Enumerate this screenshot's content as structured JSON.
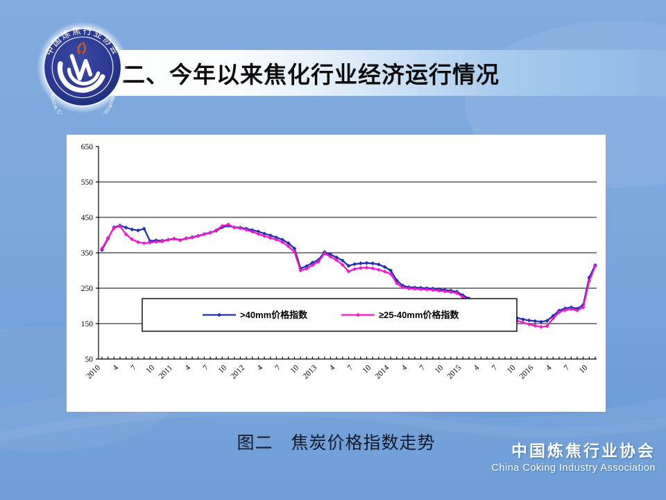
{
  "slide": {
    "title": "二、今年以来焦化行业经济运行情况",
    "caption": "图二　焦炭价格指数走势"
  },
  "logo": {
    "ring_text_top": "中国炼焦行业协会",
    "ring_text_bottom": "China Coking Industry Association",
    "circle_color": "#2a3890",
    "flame_color": "#c8581e"
  },
  "footer": {
    "org_zh": "中国炼焦行业协会",
    "org_en": "China Coking Industry Association"
  },
  "chart_data": {
    "type": "line",
    "title": "图二　焦炭价格指数走势",
    "xlabel": "",
    "ylabel": "",
    "ylim": [
      50,
      650
    ],
    "y_ticks": [
      650,
      550,
      450,
      350,
      250,
      150,
      50
    ],
    "grid_values": [
      550,
      450,
      350,
      250,
      150
    ],
    "grid": "horizontal-only",
    "legend_position": "boxed-inside-lower-left",
    "x_tick_step": 3,
    "x_tick_labels": [
      "2010",
      "4",
      "7",
      "10",
      "2011",
      "4",
      "7",
      "10",
      "2012",
      "4",
      "7",
      "10",
      "2013",
      "4",
      "7",
      "10",
      "2014",
      "4",
      "7",
      "10",
      "2015",
      "4",
      "7",
      "10",
      "2016",
      "4",
      "7",
      "10"
    ],
    "x_period_note": "monthly points, Jan 2010 - Nov 2016",
    "series": [
      {
        "name": ">40mm价格指数",
        "color": "#1f2fae",
        "values": [
          358,
          390,
          422,
          427,
          421,
          416,
          413,
          418,
          383,
          385,
          384,
          387,
          390,
          386,
          391,
          394,
          398,
          403,
          407,
          412,
          422,
          426,
          422,
          421,
          418,
          414,
          410,
          404,
          399,
          393,
          387,
          377,
          362,
          306,
          312,
          322,
          330,
          352,
          345,
          337,
          328,
          313,
          318,
          320,
          321,
          320,
          317,
          310,
          300,
          272,
          257,
          253,
          252,
          251,
          250,
          249,
          247,
          245,
          243,
          240,
          230,
          221,
          212,
          203,
          195,
          188,
          181,
          175,
          170,
          166,
          162,
          159,
          157,
          155,
          158,
          172,
          187,
          193,
          196,
          192,
          203,
          280,
          315
        ]
      },
      {
        "name": "≥25-40mm价格指数",
        "color": "#f517cd",
        "values": [
          362,
          392,
          420,
          425,
          402,
          388,
          380,
          377,
          379,
          381,
          382,
          386,
          389,
          385,
          390,
          393,
          397,
          402,
          406,
          414,
          426,
          430,
          421,
          419,
          415,
          409,
          403,
          397,
          392,
          387,
          380,
          368,
          352,
          300,
          305,
          315,
          325,
          348,
          339,
          329,
          316,
          297,
          304,
          307,
          308,
          306,
          302,
          297,
          290,
          264,
          252,
          249,
          248,
          247,
          246,
          245,
          243,
          241,
          239,
          236,
          225,
          215,
          206,
          197,
          189,
          182,
          175,
          169,
          163,
          158,
          153,
          148,
          144,
          141,
          143,
          165,
          182,
          188,
          191,
          187,
          196,
          270,
          312
        ]
      }
    ]
  }
}
